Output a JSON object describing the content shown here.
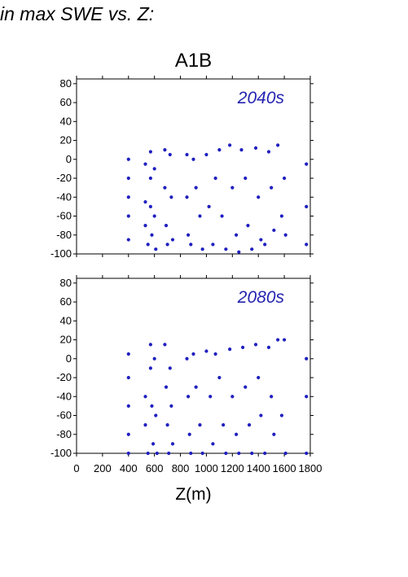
{
  "header": {
    "text": "in max SWE vs. Z:"
  },
  "colors": {
    "points": "#1f1fbf",
    "panel_label": "#2323b0",
    "axis": "#000000"
  },
  "chart_data": {
    "type": "scatter",
    "title": "A1B",
    "xlabel": "Z(m)",
    "ylabel": "",
    "xlim": [
      0,
      1800
    ],
    "ylim": [
      -100,
      85
    ],
    "xticks": [
      0,
      200,
      400,
      600,
      800,
      1000,
      1200,
      1400,
      1600,
      1800
    ],
    "yticks": [
      -100,
      -80,
      -60,
      -40,
      -20,
      0,
      20,
      40,
      60,
      80
    ],
    "grid": false,
    "panels": [
      {
        "label": "2040s",
        "series": [
          {
            "points": [
              [
                400,
                0
              ],
              [
                400,
                -20
              ],
              [
                400,
                -40
              ],
              [
                400,
                -60
              ],
              [
                400,
                -85
              ],
              [
                530,
                -5
              ],
              [
                530,
                -45
              ],
              [
                530,
                -70
              ],
              [
                550,
                -90
              ],
              [
                570,
                8
              ],
              [
                570,
                -20
              ],
              [
                570,
                -50
              ],
              [
                580,
                -80
              ],
              [
                600,
                -10
              ],
              [
                600,
                -60
              ],
              [
                610,
                -95
              ],
              [
                680,
                10
              ],
              [
                680,
                -30
              ],
              [
                690,
                -70
              ],
              [
                700,
                -90
              ],
              [
                720,
                5
              ],
              [
                730,
                -40
              ],
              [
                740,
                -85
              ],
              [
                850,
                5
              ],
              [
                850,
                -40
              ],
              [
                860,
                -80
              ],
              [
                880,
                -90
              ],
              [
                900,
                0
              ],
              [
                920,
                -30
              ],
              [
                950,
                -60
              ],
              [
                970,
                -95
              ],
              [
                1000,
                5
              ],
              [
                1020,
                -50
              ],
              [
                1050,
                -90
              ],
              [
                1070,
                -20
              ],
              [
                1100,
                10
              ],
              [
                1120,
                -60
              ],
              [
                1150,
                -95
              ],
              [
                1180,
                15
              ],
              [
                1200,
                -30
              ],
              [
                1230,
                -80
              ],
              [
                1250,
                -98
              ],
              [
                1270,
                10
              ],
              [
                1300,
                -20
              ],
              [
                1320,
                -70
              ],
              [
                1350,
                -95
              ],
              [
                1380,
                12
              ],
              [
                1400,
                -40
              ],
              [
                1420,
                -85
              ],
              [
                1450,
                -90
              ],
              [
                1480,
                8
              ],
              [
                1500,
                -30
              ],
              [
                1520,
                -75
              ],
              [
                1550,
                15
              ],
              [
                1580,
                -60
              ],
              [
                1600,
                -20
              ],
              [
                1610,
                -80
              ],
              [
                1770,
                -5
              ],
              [
                1770,
                -50
              ],
              [
                1770,
                -90
              ]
            ]
          }
        ]
      },
      {
        "label": "2080s",
        "series": [
          {
            "points": [
              [
                400,
                5
              ],
              [
                400,
                -20
              ],
              [
                400,
                -50
              ],
              [
                400,
                -80
              ],
              [
                400,
                -100
              ],
              [
                530,
                -40
              ],
              [
                530,
                -70
              ],
              [
                550,
                -100
              ],
              [
                570,
                15
              ],
              [
                570,
                -10
              ],
              [
                580,
                -50
              ],
              [
                590,
                -90
              ],
              [
                600,
                0
              ],
              [
                610,
                -60
              ],
              [
                620,
                -100
              ],
              [
                680,
                15
              ],
              [
                690,
                -30
              ],
              [
                700,
                -70
              ],
              [
                710,
                -100
              ],
              [
                720,
                -10
              ],
              [
                730,
                -50
              ],
              [
                740,
                -90
              ],
              [
                850,
                0
              ],
              [
                860,
                -40
              ],
              [
                870,
                -80
              ],
              [
                880,
                -100
              ],
              [
                900,
                5
              ],
              [
                920,
                -30
              ],
              [
                950,
                -70
              ],
              [
                970,
                -100
              ],
              [
                1000,
                8
              ],
              [
                1030,
                -40
              ],
              [
                1050,
                -90
              ],
              [
                1070,
                5
              ],
              [
                1100,
                -20
              ],
              [
                1130,
                -70
              ],
              [
                1150,
                -100
              ],
              [
                1180,
                10
              ],
              [
                1200,
                -40
              ],
              [
                1230,
                -80
              ],
              [
                1250,
                -100
              ],
              [
                1280,
                12
              ],
              [
                1300,
                -30
              ],
              [
                1330,
                -70
              ],
              [
                1350,
                -100
              ],
              [
                1380,
                15
              ],
              [
                1400,
                -20
              ],
              [
                1420,
                -60
              ],
              [
                1450,
                -100
              ],
              [
                1480,
                12
              ],
              [
                1500,
                -40
              ],
              [
                1520,
                -80
              ],
              [
                1550,
                20
              ],
              [
                1580,
                -60
              ],
              [
                1600,
                20
              ],
              [
                1610,
                -100
              ],
              [
                1770,
                0
              ],
              [
                1770,
                -40
              ],
              [
                1770,
                -100
              ]
            ]
          }
        ]
      }
    ]
  }
}
